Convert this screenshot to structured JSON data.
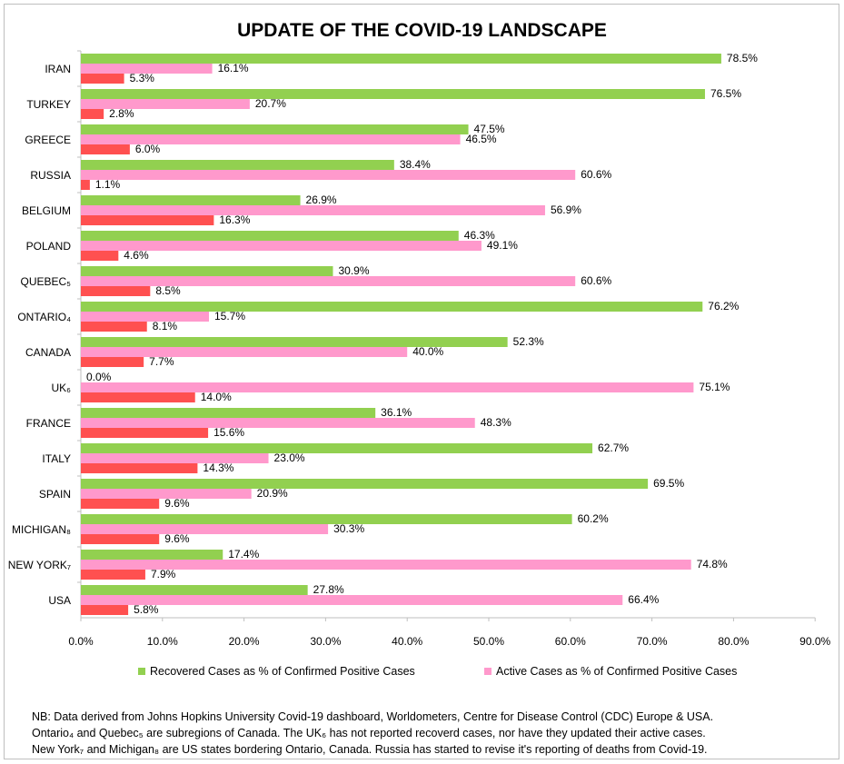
{
  "chart_data": {
    "type": "bar",
    "orientation": "horizontal",
    "title": "UPDATE OF THE COVID-19 LANDSCAPE",
    "categories": [
      "IRAN",
      "TURKEY",
      "GREECE",
      "RUSSIA",
      "BELGIUM",
      "POLAND",
      "QUEBEC₅",
      "ONTARIO₄",
      "CANADA",
      "UK₆",
      "FRANCE",
      "ITALY",
      "SPAIN",
      "MICHIGAN₈",
      "NEW YORK₇",
      "USA"
    ],
    "series": [
      {
        "name": "Recovered Cases as % of Confirmed Positive Cases",
        "color": "#92d050",
        "values": [
          78.5,
          76.5,
          47.5,
          38.4,
          26.9,
          46.3,
          30.9,
          76.2,
          52.3,
          0.0,
          36.1,
          62.7,
          69.5,
          60.2,
          17.4,
          27.8
        ]
      },
      {
        "name": "Active Cases as % of Confirmed Positive Cases",
        "color": "#ff99cc",
        "values": [
          16.1,
          20.7,
          46.5,
          60.6,
          56.9,
          49.1,
          60.6,
          15.7,
          40.0,
          75.1,
          48.3,
          23.0,
          20.9,
          30.3,
          74.8,
          66.4
        ]
      },
      {
        "name": "",
        "color": "#ff5050",
        "values": [
          5.3,
          2.8,
          6.0,
          1.1,
          16.3,
          4.6,
          8.5,
          8.1,
          7.7,
          14.0,
          15.6,
          14.3,
          9.6,
          9.6,
          7.9,
          5.8
        ]
      }
    ],
    "xlim": [
      0,
      90
    ],
    "xticks": [
      "0.0%",
      "10.0%",
      "20.0%",
      "30.0%",
      "40.0%",
      "50.0%",
      "60.0%",
      "70.0%",
      "80.0%",
      "90.0%"
    ],
    "grid": false,
    "legend": "bottom"
  },
  "notes": [
    "NB: Data derived from Johns Hopkins University Covid-19 dashboard, Worldometers, Centre for Disease Control (CDC) Europe & USA.",
    "Ontario₄ and Quebec₅ are subregions of Canada. The UK₆ has not reported recoverd cases, nor have they updated their active cases.",
    "New York₇ and Michigan₈ are US states bordering Ontario, Canada. Russia has started to revise it's reporting of deaths from Covid-19."
  ]
}
